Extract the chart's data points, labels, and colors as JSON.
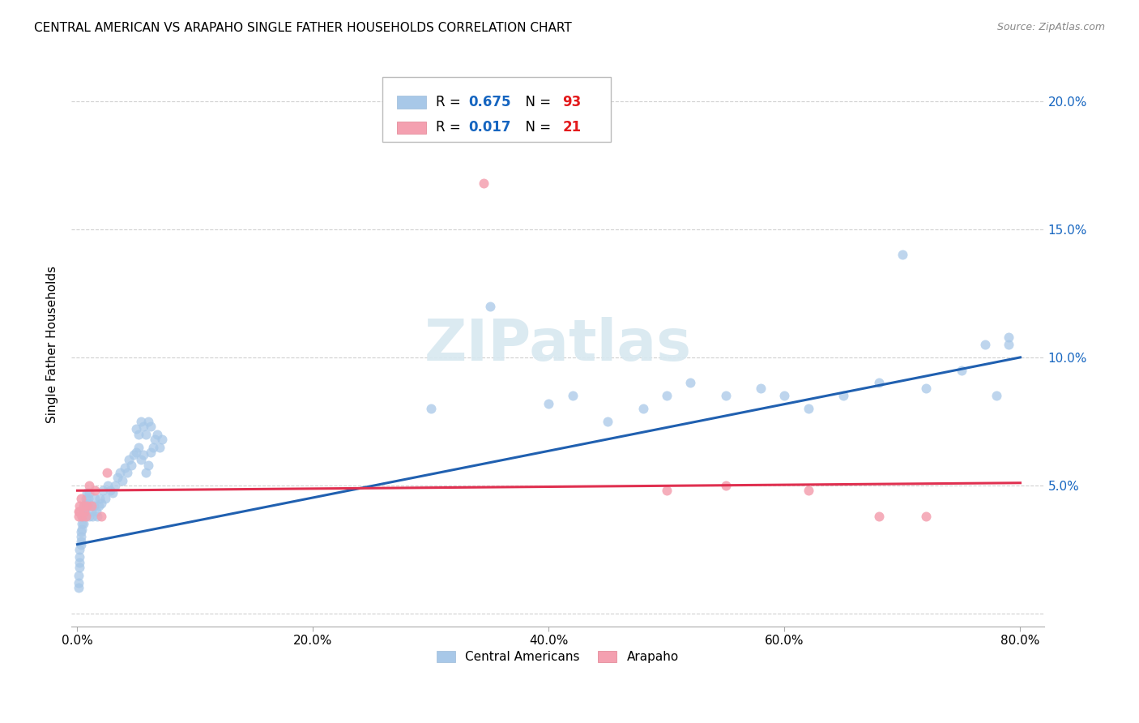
{
  "title": "CENTRAL AMERICAN VS ARAPAHO SINGLE FATHER HOUSEHOLDS CORRELATION CHART",
  "source": "Source: ZipAtlas.com",
  "ylabel": "Single Father Households",
  "yticks": [
    0.0,
    0.05,
    0.1,
    0.15,
    0.2
  ],
  "ytick_labels_right": [
    "",
    "5.0%",
    "10.0%",
    "15.0%",
    "20.0%"
  ],
  "xticks": [
    0.0,
    0.2,
    0.4,
    0.6,
    0.8
  ],
  "xtick_labels": [
    "0.0%",
    "20.0%",
    "40.0%",
    "60.0%",
    "80.0%"
  ],
  "xlim": [
    -0.005,
    0.82
  ],
  "ylim": [
    -0.005,
    0.215
  ],
  "blue_scatter_color": "#a8c8e8",
  "pink_scatter_color": "#f4a0b0",
  "blue_line_color": "#2060b0",
  "pink_line_color": "#e03050",
  "R_blue": 0.675,
  "N_blue": 93,
  "R_pink": 0.017,
  "N_pink": 21,
  "legend_label_blue": "Central Americans",
  "legend_label_pink": "Arapaho",
  "watermark": "ZIPatlas",
  "blue_x": [
    0.001,
    0.001,
    0.001,
    0.002,
    0.002,
    0.002,
    0.002,
    0.003,
    0.003,
    0.003,
    0.003,
    0.004,
    0.004,
    0.004,
    0.005,
    0.005,
    0.005,
    0.006,
    0.006,
    0.006,
    0.007,
    0.007,
    0.007,
    0.008,
    0.008,
    0.009,
    0.009,
    0.01,
    0.01,
    0.011,
    0.012,
    0.013,
    0.014,
    0.015,
    0.016,
    0.017,
    0.018,
    0.019,
    0.02,
    0.022,
    0.024,
    0.026,
    0.028,
    0.03,
    0.032,
    0.034,
    0.036,
    0.038,
    0.04,
    0.042,
    0.044,
    0.046,
    0.048,
    0.05,
    0.052,
    0.054,
    0.056,
    0.058,
    0.06,
    0.062,
    0.064,
    0.066,
    0.068,
    0.07,
    0.072,
    0.05,
    0.052,
    0.054,
    0.056,
    0.058,
    0.06,
    0.062,
    0.3,
    0.35,
    0.4,
    0.42,
    0.45,
    0.48,
    0.5,
    0.52,
    0.55,
    0.58,
    0.6,
    0.62,
    0.65,
    0.68,
    0.7,
    0.72,
    0.75,
    0.77,
    0.78,
    0.79,
    0.79
  ],
  "blue_y": [
    0.01,
    0.012,
    0.015,
    0.018,
    0.02,
    0.022,
    0.025,
    0.027,
    0.028,
    0.03,
    0.032,
    0.033,
    0.035,
    0.038,
    0.04,
    0.035,
    0.038,
    0.042,
    0.04,
    0.038,
    0.042,
    0.045,
    0.043,
    0.047,
    0.042,
    0.045,
    0.043,
    0.047,
    0.038,
    0.042,
    0.04,
    0.038,
    0.042,
    0.045,
    0.04,
    0.038,
    0.042,
    0.045,
    0.043,
    0.048,
    0.045,
    0.05,
    0.048,
    0.047,
    0.05,
    0.053,
    0.055,
    0.052,
    0.057,
    0.055,
    0.06,
    0.058,
    0.062,
    0.063,
    0.065,
    0.06,
    0.062,
    0.055,
    0.058,
    0.063,
    0.065,
    0.068,
    0.07,
    0.065,
    0.068,
    0.072,
    0.07,
    0.075,
    0.073,
    0.07,
    0.075,
    0.073,
    0.08,
    0.12,
    0.082,
    0.085,
    0.075,
    0.08,
    0.085,
    0.09,
    0.085,
    0.088,
    0.085,
    0.08,
    0.085,
    0.09,
    0.14,
    0.088,
    0.095,
    0.105,
    0.085,
    0.105,
    0.108
  ],
  "pink_x": [
    0.001,
    0.001,
    0.002,
    0.002,
    0.003,
    0.004,
    0.005,
    0.006,
    0.007,
    0.008,
    0.01,
    0.012,
    0.015,
    0.02,
    0.025,
    0.345,
    0.5,
    0.55,
    0.62,
    0.68,
    0.72
  ],
  "pink_y": [
    0.038,
    0.04,
    0.04,
    0.042,
    0.045,
    0.038,
    0.042,
    0.04,
    0.038,
    0.042,
    0.05,
    0.042,
    0.048,
    0.038,
    0.055,
    0.168,
    0.048,
    0.05,
    0.048,
    0.038,
    0.038
  ],
  "blue_trend_x": [
    0.0,
    0.8
  ],
  "blue_trend_y": [
    0.027,
    0.1
  ],
  "pink_trend_x": [
    0.0,
    0.8
  ],
  "pink_trend_y": [
    0.048,
    0.051
  ]
}
